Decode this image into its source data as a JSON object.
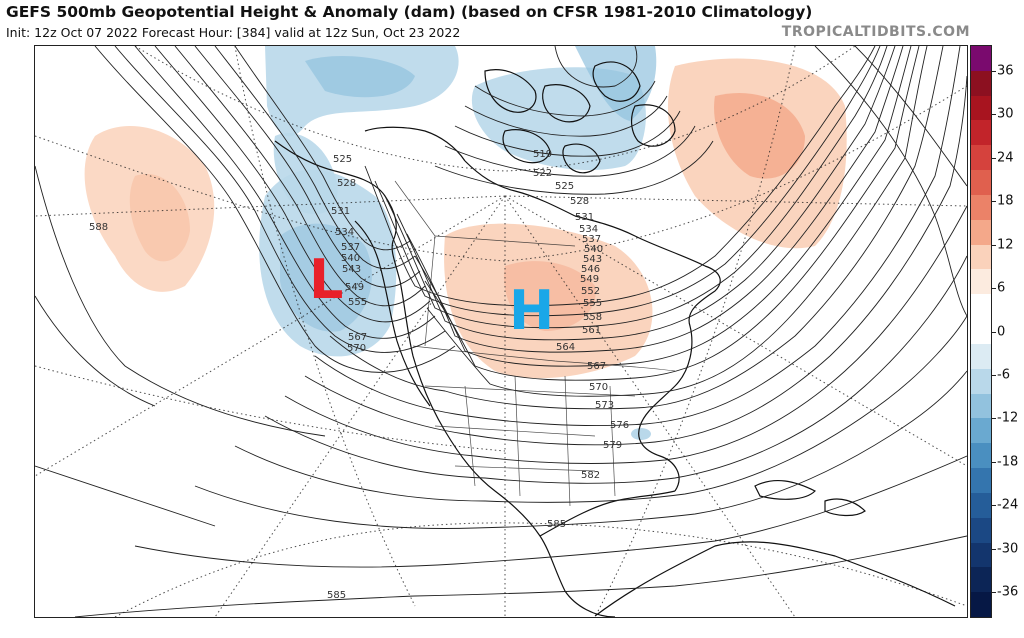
{
  "header": {
    "title": "GEFS 500mb Geopotential Height & Anomaly (dam) (based on CFSR 1981-2010 Climatology)",
    "subtitle": "Init: 12z Oct 07 2022   Forecast Hour: [384]   valid at 12z Sun, Oct 23 2022",
    "credit": "TROPICALTIDBITS.COM"
  },
  "map": {
    "low_marker": "L",
    "high_marker": "H",
    "low_color": "#e8202a",
    "high_color": "#1aa7e8",
    "contour_labels": [
      "588",
      "519",
      "522",
      "525",
      "528",
      "531",
      "534",
      "537",
      "540",
      "543",
      "546",
      "549",
      "552",
      "555",
      "558",
      "561",
      "564",
      "567",
      "570",
      "573",
      "576",
      "579",
      "582",
      "585",
      "525",
      "528",
      "531",
      "534",
      "537",
      "540",
      "543",
      "549",
      "555",
      "567",
      "570",
      "585"
    ]
  },
  "colorbar": {
    "ticks": [
      "36",
      "30",
      "24",
      "18",
      "12",
      "6",
      "0",
      "-6",
      "-12",
      "-18",
      "-24",
      "-30",
      "-36"
    ],
    "colors": [
      "#7a0a6e",
      "#8c1020",
      "#a8141f",
      "#c2242a",
      "#d5423d",
      "#e0604e",
      "#eb8268",
      "#f4a88a",
      "#fad2bb",
      "#fcebdf",
      "#ffffff",
      "#ffffff",
      "#dcebf3",
      "#b9d8ea",
      "#92c2de",
      "#6aa9d0",
      "#4a8fc0",
      "#3475ae",
      "#255d99",
      "#1b4884",
      "#13356d",
      "#0c2556",
      "#061845"
    ]
  }
}
